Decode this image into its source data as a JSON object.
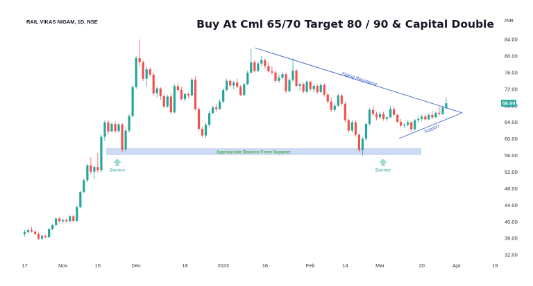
{
  "header": {
    "symbol": "RAIL VIKAS NIGAM, 1D, NSE",
    "headline": "Buy At Cml 65/70 Target 80 / 90 & Capital Double",
    "currency": "INR"
  },
  "colors": {
    "up": "#26a69a",
    "down": "#ef5350",
    "trendline": "#3a5fc8",
    "support_zone": "#cfdaf5",
    "zone_text": "#4caf50",
    "bounce_arrow": "#9ed8cf",
    "bounce_text": "#26a69a",
    "price_badge": "#26a69a"
  },
  "annotations": {
    "falling_resistance": "Falling Resistance",
    "support": "Support",
    "zone_label": "Appropriate Bounce From Support",
    "bounce_1": "Bounce",
    "bounce_2": "Bounce"
  },
  "chart_data": {
    "type": "candlestick",
    "title": "RAIL VIKAS NIGAM, 1D, NSE",
    "subtitle": "Buy At Cml 65/70 Target 80 / 90 & Capital Double",
    "ylabel": "INR",
    "ylim": [
      31,
      87
    ],
    "y_ticks": [
      32,
      36,
      40,
      44,
      48,
      52,
      56,
      60,
      64,
      68,
      72,
      76,
      80,
      84
    ],
    "y_tick_labels": [
      "32.00",
      "36.00",
      "40.00",
      "44.00",
      "48.00",
      "52.00",
      "56.00",
      "60.00",
      "64.00",
      "68.00",
      "72.00",
      "76.00",
      "80.00",
      "84.00"
    ],
    "x_tick_labels": [
      "17",
      "Nov",
      "15",
      "Dec",
      "19",
      "2023",
      "16",
      "Feb",
      "14",
      "Mar",
      "20",
      "Apr",
      "19"
    ],
    "x_tick_index": [
      0,
      11,
      21,
      32,
      46,
      57,
      69,
      82,
      92,
      102,
      114,
      124,
      135
    ],
    "n_slots": 136,
    "last_price": "68.60",
    "grid": false,
    "candles": [
      [
        37.0,
        38.0,
        36.4,
        37.5
      ],
      [
        37.5,
        38.4,
        37.0,
        38.0
      ],
      [
        38.0,
        38.7,
        37.4,
        37.6
      ],
      [
        37.6,
        37.8,
        36.8,
        37.0
      ],
      [
        37.0,
        37.4,
        35.6,
        35.9
      ],
      [
        35.9,
        36.8,
        35.5,
        36.6
      ],
      [
        36.5,
        36.9,
        36.0,
        36.3
      ],
      [
        36.3,
        38.5,
        36.1,
        38.2
      ],
      [
        38.2,
        39.5,
        37.9,
        39.2
      ],
      [
        39.2,
        41.0,
        39.0,
        40.8
      ],
      [
        40.8,
        41.2,
        39.8,
        40.1
      ],
      [
        40.1,
        40.8,
        39.6,
        40.4
      ],
      [
        40.4,
        40.8,
        39.8,
        40.1
      ],
      [
        40.1,
        41.6,
        39.9,
        41.3
      ],
      [
        41.3,
        41.8,
        39.9,
        40.2
      ],
      [
        40.2,
        44.0,
        40.0,
        43.5
      ],
      [
        43.5,
        47.5,
        43.2,
        47.2
      ],
      [
        47.2,
        50.5,
        46.8,
        50.0
      ],
      [
        50.0,
        54.0,
        49.5,
        53.6
      ],
      [
        53.6,
        55.6,
        51.5,
        52.1
      ],
      [
        52.1,
        53.5,
        50.4,
        53.2
      ],
      [
        53.2,
        56.6,
        51.8,
        52.4
      ],
      [
        52.4,
        61.0,
        52.0,
        60.5
      ],
      [
        60.5,
        64.5,
        59.5,
        64.0
      ],
      [
        64.0,
        64.6,
        61.0,
        61.8
      ],
      [
        61.8,
        64.1,
        61.6,
        63.6
      ],
      [
        63.6,
        64.2,
        61.5,
        61.9
      ],
      [
        61.9,
        64.0,
        61.5,
        63.5
      ],
      [
        63.5,
        63.8,
        56.8,
        57.4
      ],
      [
        57.5,
        62.8,
        57.0,
        62.0
      ],
      [
        62.0,
        66.0,
        61.5,
        65.5
      ],
      [
        65.5,
        73.0,
        65.2,
        72.5
      ],
      [
        72.5,
        80.0,
        72.0,
        79.5
      ],
      [
        79.5,
        84.0,
        77.5,
        78.5
      ],
      [
        78.5,
        79.0,
        74.0,
        74.5
      ],
      [
        74.5,
        77.5,
        72.5,
        76.8
      ],
      [
        76.8,
        77.2,
        75.0,
        75.5
      ],
      [
        75.5,
        76.0,
        70.5,
        71.0
      ],
      [
        71.0,
        72.7,
        70.0,
        72.2
      ],
      [
        72.2,
        72.5,
        69.4,
        70.3
      ],
      [
        70.3,
        70.8,
        67.5,
        67.8
      ],
      [
        67.8,
        70.6,
        67.5,
        70.2
      ],
      [
        70.2,
        71.0,
        66.0,
        66.4
      ],
      [
        66.4,
        73.2,
        66.2,
        72.7
      ],
      [
        72.7,
        73.6,
        71.2,
        71.8
      ],
      [
        71.8,
        72.5,
        69.3,
        69.6
      ],
      [
        69.6,
        71.2,
        69.0,
        70.8
      ],
      [
        70.8,
        71.2,
        69.8,
        70.5
      ],
      [
        70.5,
        74.8,
        70.2,
        74.3
      ],
      [
        74.3,
        75.1,
        66.8,
        67.2
      ],
      [
        67.2,
        67.5,
        62.0,
        62.4
      ],
      [
        62.4,
        63.0,
        60.4,
        60.8
      ],
      [
        60.8,
        64.0,
        60.2,
        63.4
      ],
      [
        63.4,
        66.8,
        63.0,
        66.2
      ],
      [
        66.2,
        68.0,
        66.0,
        67.6
      ],
      [
        67.6,
        68.4,
        66.6,
        67.2
      ],
      [
        67.2,
        69.6,
        67.0,
        69.0
      ],
      [
        69.0,
        72.2,
        68.6,
        71.8
      ],
      [
        71.8,
        74.5,
        71.5,
        74.0
      ],
      [
        74.0,
        74.4,
        72.4,
        72.9
      ],
      [
        72.9,
        74.0,
        72.0,
        73.6
      ],
      [
        73.6,
        74.6,
        72.2,
        72.6
      ],
      [
        72.6,
        73.0,
        70.3,
        70.6
      ],
      [
        70.6,
        73.5,
        70.3,
        73.2
      ],
      [
        73.2,
        76.5,
        73.0,
        76.0
      ],
      [
        76.0,
        81.8,
        75.8,
        78.5
      ],
      [
        78.5,
        79.0,
        76.0,
        76.4
      ],
      [
        76.4,
        78.6,
        76.2,
        78.2
      ],
      [
        78.2,
        80.0,
        77.5,
        79.0
      ],
      [
        79.0,
        79.4,
        77.0,
        77.6
      ],
      [
        77.6,
        78.5,
        76.0,
        76.3
      ],
      [
        76.3,
        77.5,
        75.5,
        76.0
      ],
      [
        76.0,
        76.5,
        73.5,
        74.0
      ],
      [
        74.0,
        75.5,
        73.5,
        74.8
      ],
      [
        74.8,
        76.2,
        74.4,
        75.6
      ],
      [
        75.6,
        76.0,
        71.0,
        71.5
      ],
      [
        71.5,
        74.7,
        71.2,
        74.2
      ],
      [
        74.2,
        79.5,
        73.8,
        76.5
      ],
      [
        76.5,
        76.8,
        72.4,
        72.8
      ],
      [
        72.8,
        73.6,
        71.8,
        73.2
      ],
      [
        73.2,
        73.6,
        71.0,
        71.4
      ],
      [
        71.4,
        74.2,
        71.0,
        73.8
      ],
      [
        73.8,
        74.0,
        71.5,
        72.0
      ],
      [
        72.0,
        73.3,
        71.2,
        72.8
      ],
      [
        72.8,
        73.2,
        70.8,
        71.3
      ],
      [
        71.3,
        73.5,
        71.0,
        73.0
      ],
      [
        73.0,
        73.4,
        70.2,
        70.7
      ],
      [
        70.7,
        71.0,
        68.5,
        69.0
      ],
      [
        69.0,
        70.0,
        66.5,
        67.0
      ],
      [
        67.0,
        68.5,
        66.5,
        68.0
      ],
      [
        68.0,
        71.0,
        67.8,
        70.5
      ],
      [
        70.5,
        70.8,
        68.0,
        68.5
      ],
      [
        68.5,
        69.0,
        64.0,
        64.5
      ],
      [
        64.5,
        65.0,
        61.5,
        62.0
      ],
      [
        62.0,
        64.5,
        61.5,
        64.0
      ],
      [
        64.0,
        64.5,
        60.5,
        61.0
      ],
      [
        61.0,
        61.5,
        56.8,
        57.3
      ],
      [
        57.3,
        60.5,
        56.0,
        60.0
      ],
      [
        60.0,
        64.0,
        59.5,
        63.6
      ],
      [
        63.6,
        67.5,
        63.2,
        67.0
      ],
      [
        67.0,
        68.0,
        65.5,
        66.0
      ],
      [
        66.0,
        66.5,
        64.5,
        65.2
      ],
      [
        65.2,
        66.5,
        64.8,
        66.0
      ],
      [
        66.0,
        66.6,
        64.4,
        64.8
      ],
      [
        64.8,
        65.5,
        64.3,
        65.2
      ],
      [
        65.2,
        68.0,
        65.0,
        67.2
      ],
      [
        67.2,
        67.8,
        65.5,
        65.8
      ],
      [
        65.8,
        66.0,
        63.8,
        64.1
      ],
      [
        64.1,
        64.8,
        62.8,
        63.2
      ],
      [
        63.2,
        63.8,
        62.6,
        63.4
      ],
      [
        63.4,
        64.5,
        63.0,
        64.0
      ],
      [
        64.0,
        64.3,
        61.8,
        62.3
      ],
      [
        62.3,
        64.8,
        62.0,
        64.5
      ],
      [
        64.5,
        65.5,
        63.8,
        64.8
      ],
      [
        64.8,
        65.8,
        64.2,
        65.4
      ],
      [
        65.4,
        66.0,
        64.4,
        64.7
      ],
      [
        64.7,
        66.2,
        64.5,
        65.8
      ],
      [
        65.8,
        66.8,
        64.8,
        65.2
      ],
      [
        65.2,
        66.6,
        65.0,
        66.3
      ],
      [
        66.3,
        67.8,
        65.6,
        66.0
      ],
      [
        66.0,
        68.0,
        65.8,
        67.5
      ],
      [
        67.5,
        70.0,
        67.2,
        68.6
      ]
    ]
  }
}
